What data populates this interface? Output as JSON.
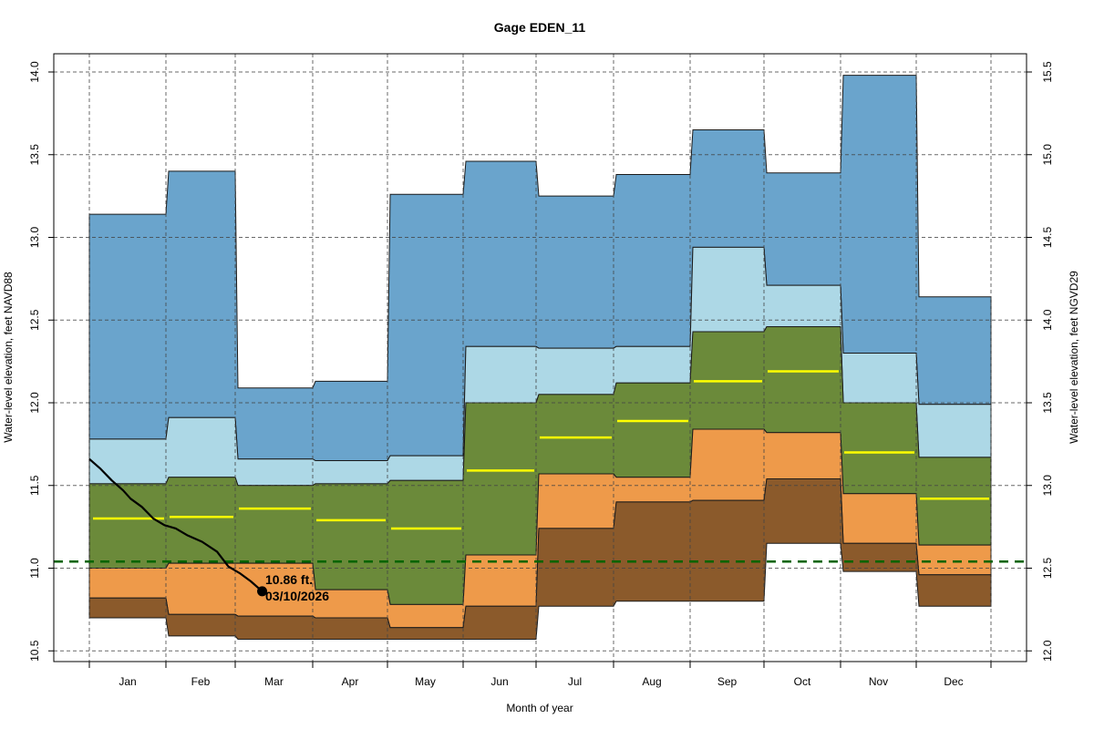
{
  "chart_data": {
    "type": "area",
    "title": "Gage EDEN_11",
    "xlabel": "Month of year",
    "ylabel": "Water-level elevation, feet NAVD88",
    "ylabel_right": "Water-level elevation, feet NGVD29",
    "ylim": [
      10.45,
      14.1
    ],
    "ylim_right_offset": 1.5,
    "yticks": [
      "10.5",
      "11.0",
      "11.5",
      "12.0",
      "12.5",
      "13.0",
      "13.5",
      "14.0"
    ],
    "yticks_right": [
      "12.0",
      "12.5",
      "13.0",
      "13.5",
      "14.0",
      "14.5",
      "15.0",
      "15.5"
    ],
    "grid": true,
    "categories": [
      "Jan",
      "Feb",
      "Mar",
      "Apr",
      "May",
      "Jun",
      "Jul",
      "Aug",
      "Sep",
      "Oct",
      "Nov",
      "Dec"
    ],
    "band_colors": {
      "max_to_p90": "#6aa4cc",
      "p90_to_p75": "#add8e6",
      "p75_to_p25": "#6b8a3a",
      "p25_to_p10": "#ee9a4a",
      "p10_to_min": "#8b5a2b",
      "median": "#ffff00",
      "reference": "#006400",
      "current": "#000000"
    },
    "series": [
      {
        "name": "max",
        "values": [
          13.14,
          13.4,
          12.09,
          12.13,
          13.26,
          13.46,
          13.25,
          13.38,
          13.65,
          13.39,
          13.98,
          12.64
        ]
      },
      {
        "name": "p90",
        "values": [
          11.78,
          11.91,
          11.66,
          11.65,
          11.68,
          12.34,
          12.33,
          12.34,
          12.94,
          12.71,
          12.3,
          11.99
        ]
      },
      {
        "name": "p75",
        "values": [
          11.51,
          11.55,
          11.5,
          11.51,
          11.53,
          12.0,
          12.05,
          12.12,
          12.43,
          12.46,
          12.0,
          11.67
        ]
      },
      {
        "name": "median",
        "values": [
          11.3,
          11.31,
          11.36,
          11.29,
          11.24,
          11.59,
          11.79,
          11.89,
          12.13,
          12.19,
          11.7,
          11.42
        ]
      },
      {
        "name": "p25",
        "values": [
          11.0,
          11.03,
          11.03,
          10.87,
          10.78,
          11.08,
          11.57,
          11.55,
          11.84,
          11.82,
          11.45,
          11.14
        ]
      },
      {
        "name": "p10",
        "values": [
          10.82,
          10.72,
          10.71,
          10.7,
          10.64,
          10.77,
          11.24,
          11.4,
          11.41,
          11.54,
          11.15,
          10.96
        ]
      },
      {
        "name": "min",
        "values": [
          10.7,
          10.59,
          10.57,
          10.57,
          10.57,
          10.57,
          10.77,
          10.8,
          10.8,
          11.15,
          10.98,
          10.77
        ]
      }
    ],
    "reference_line": {
      "value": 11.04,
      "style": "dashed"
    },
    "current_trace": {
      "x": [
        0.0,
        0.15,
        0.3,
        0.45,
        0.55,
        0.7,
        0.85,
        1.0,
        1.15,
        1.3,
        1.5,
        1.7,
        1.85,
        2.0,
        2.15,
        2.3
      ],
      "y": [
        11.66,
        11.6,
        11.53,
        11.47,
        11.42,
        11.37,
        11.3,
        11.26,
        11.24,
        11.2,
        11.16,
        11.1,
        11.01,
        10.97,
        10.92,
        10.86
      ]
    },
    "annotation": {
      "value_text": "10.86 ft.",
      "date_text": "03/10/2026",
      "x": 2.3,
      "y": 10.86
    }
  }
}
